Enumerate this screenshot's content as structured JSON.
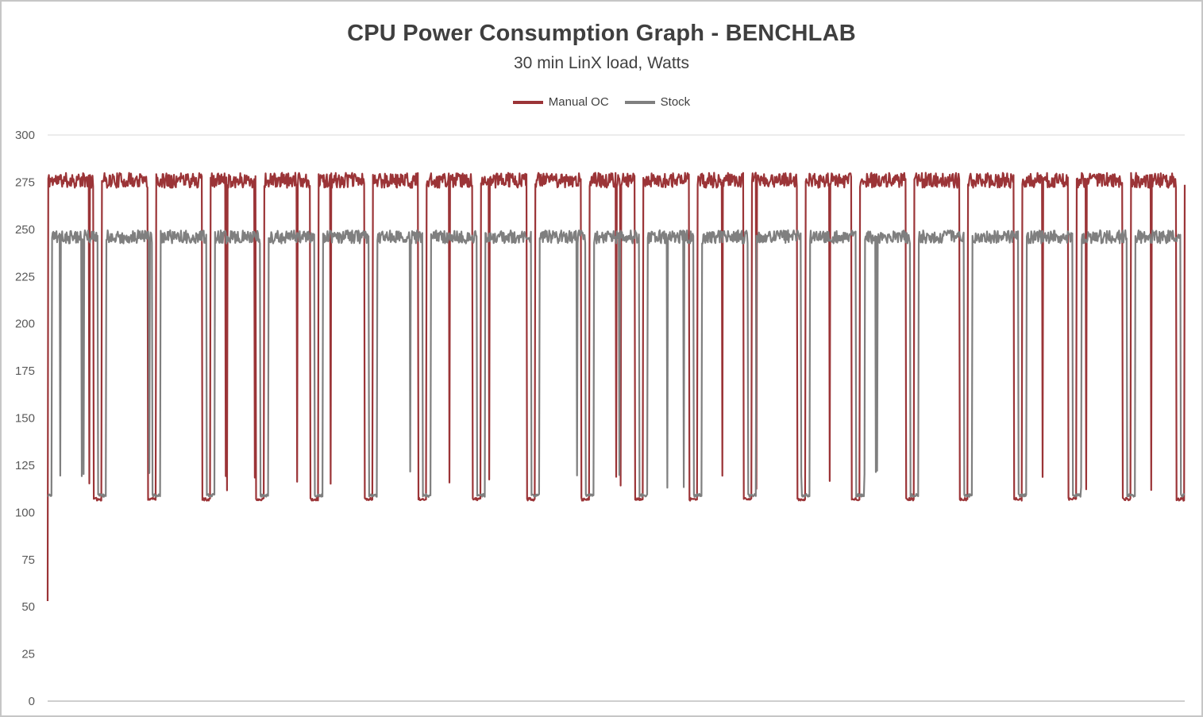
{
  "chart_data": {
    "type": "line",
    "title": "CPU Power Consumption Graph - BENCHLAB",
    "subtitle": "30 min LinX load, Watts",
    "legend_position": "top-center",
    "x_axis": {
      "label": "",
      "tick_labels": [],
      "duration_seconds": 1800,
      "note": "no visible x tick labels; span is the 30 minute LinX run"
    },
    "y_axis": {
      "min": 0,
      "max": 300,
      "tick_interval": 25,
      "ticks": [
        0,
        25,
        50,
        75,
        100,
        125,
        150,
        175,
        200,
        225,
        250,
        275,
        300
      ]
    },
    "grid": {
      "horizontal_gridlines": false,
      "top_line_at": 300,
      "baseline_at": 0,
      "gridline_color": "#d9d9d9",
      "axis_color": "#bfbfbf"
    },
    "series": [
      {
        "name": "Manual OC",
        "color": "#9b3437",
        "pattern": {
          "shape": "square-wave",
          "cycles": 21,
          "cycle_seconds": 85.7,
          "high_watts": 276,
          "high_band_watts": [
            270,
            281
          ],
          "low_watts": 107,
          "low_seconds": 13,
          "phase_seconds": 0,
          "noise_watts": 4,
          "start_value_watts": 53
        }
      },
      {
        "name": "Stock",
        "color": "#7f7f7f",
        "pattern": {
          "shape": "square-wave",
          "cycles": 21,
          "cycle_seconds": 85.7,
          "high_watts": 246,
          "high_band_watts": [
            240,
            251
          ],
          "low_watts": 109,
          "low_seconds": 13,
          "phase_seconds": 7,
          "noise_watts": 3.5
        }
      }
    ]
  }
}
